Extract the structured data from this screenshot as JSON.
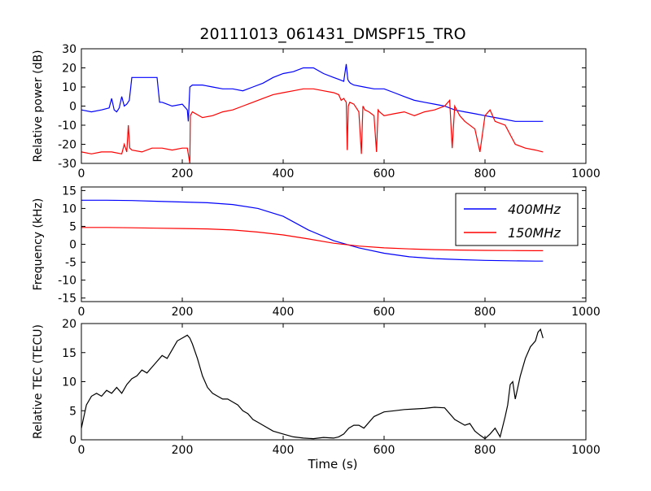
{
  "figure": {
    "title": "20111013_061431_DMSPF15_TRO",
    "xlabel": "Time (s)"
  },
  "chart_data": [
    {
      "type": "line",
      "ylabel": "Relative power (dB)",
      "xlim": [
        0,
        1000
      ],
      "ylim": [
        -30,
        30
      ],
      "xticks": [
        0,
        200,
        400,
        600,
        800,
        1000
      ],
      "yticks": [
        -30,
        -20,
        -10,
        0,
        10,
        20,
        30
      ],
      "grid": false,
      "series": [
        {
          "color": "#0000ff",
          "x": [
            0,
            20,
            40,
            55,
            60,
            65,
            70,
            75,
            80,
            85,
            90,
            95,
            100,
            150,
            155,
            160,
            180,
            200,
            210,
            212,
            215,
            220,
            240,
            260,
            280,
            300,
            320,
            340,
            360,
            380,
            400,
            420,
            440,
            460,
            480,
            500,
            510,
            520,
            525,
            528,
            530,
            533,
            540,
            560,
            580,
            600,
            620,
            640,
            660,
            680,
            700,
            720,
            740,
            760,
            780,
            800,
            820,
            840,
            860,
            880,
            900,
            915
          ],
          "y": [
            -2,
            -3,
            -2,
            -1,
            4,
            -2,
            -3,
            -1,
            5,
            0,
            1,
            3,
            15,
            15,
            2,
            2,
            0,
            1,
            -2,
            -8,
            10,
            11,
            11,
            10,
            9,
            9,
            8,
            10,
            12,
            15,
            17,
            18,
            20,
            20,
            17,
            15,
            14,
            13,
            22,
            14,
            13,
            12,
            11,
            10,
            9,
            9,
            7,
            5,
            3,
            2,
            1,
            0,
            -2,
            -3,
            -4,
            -5,
            -6,
            -7,
            -8,
            -8,
            -8,
            -8
          ]
        },
        {
          "color": "#ff0000",
          "x": [
            0,
            20,
            40,
            60,
            80,
            85,
            90,
            93,
            96,
            100,
            120,
            140,
            160,
            180,
            200,
            210,
            215,
            216,
            220,
            240,
            260,
            280,
            300,
            320,
            340,
            360,
            380,
            400,
            420,
            440,
            460,
            480,
            500,
            510,
            515,
            520,
            525,
            527,
            529,
            532,
            540,
            550,
            555,
            558,
            562,
            570,
            580,
            585,
            588,
            591,
            600,
            620,
            640,
            660,
            680,
            700,
            720,
            730,
            735,
            740,
            750,
            760,
            780,
            790,
            800,
            810,
            820,
            840,
            860,
            880,
            900,
            915
          ],
          "y": [
            -24,
            -25,
            -24,
            -24,
            -25,
            -20,
            -24,
            -10,
            -22,
            -23,
            -24,
            -22,
            -22,
            -23,
            -22,
            -22,
            -30,
            -5,
            -3,
            -6,
            -5,
            -3,
            -2,
            0,
            2,
            4,
            6,
            7,
            8,
            9,
            9,
            8,
            7,
            6,
            3,
            4,
            2,
            -23,
            0,
            2,
            1,
            -3,
            -25,
            0,
            -2,
            -3,
            -5,
            -24,
            -2,
            -3,
            -5,
            -4,
            -3,
            -5,
            -3,
            -2,
            0,
            3,
            -22,
            0,
            -5,
            -8,
            -12,
            -24,
            -5,
            -2,
            -8,
            -10,
            -20,
            -22,
            -23,
            -24
          ]
        }
      ]
    },
    {
      "type": "line",
      "ylabel": "Frequency (kHz)",
      "xlim": [
        0,
        1000
      ],
      "ylim": [
        -16,
        16
      ],
      "xticks": [
        0,
        200,
        400,
        600,
        800,
        1000
      ],
      "yticks": [
        -15,
        -10,
        -5,
        0,
        5,
        10,
        15
      ],
      "grid": false,
      "legend": "top-right",
      "series": [
        {
          "name": "400MHz",
          "color": "#0000ff",
          "x": [
            0,
            50,
            100,
            150,
            200,
            250,
            300,
            350,
            400,
            450,
            500,
            550,
            600,
            650,
            700,
            750,
            800,
            850,
            900,
            915
          ],
          "y": [
            12.3,
            12.3,
            12.2,
            12.0,
            11.8,
            11.6,
            11.1,
            10.0,
            7.8,
            4.0,
            1.0,
            -1.0,
            -2.5,
            -3.5,
            -4.0,
            -4.3,
            -4.5,
            -4.6,
            -4.7,
            -4.7
          ]
        },
        {
          "name": "150MHz",
          "color": "#ff0000",
          "x": [
            0,
            50,
            100,
            150,
            200,
            250,
            300,
            350,
            400,
            450,
            500,
            550,
            600,
            650,
            700,
            750,
            800,
            850,
            900,
            915
          ],
          "y": [
            4.7,
            4.7,
            4.6,
            4.5,
            4.4,
            4.3,
            4.0,
            3.4,
            2.6,
            1.5,
            0.3,
            -0.5,
            -1.0,
            -1.3,
            -1.5,
            -1.6,
            -1.7,
            -1.75,
            -1.8,
            -1.8
          ]
        }
      ]
    },
    {
      "type": "line",
      "ylabel": "Relative TEC (TECU)",
      "xlim": [
        0,
        1000
      ],
      "ylim": [
        0,
        20
      ],
      "xticks": [
        0,
        200,
        400,
        600,
        800,
        1000
      ],
      "yticks": [
        0,
        5,
        10,
        15,
        20
      ],
      "grid": false,
      "series": [
        {
          "color": "#000000",
          "x": [
            0,
            5,
            10,
            20,
            30,
            40,
            50,
            60,
            70,
            80,
            90,
            100,
            110,
            120,
            130,
            140,
            150,
            160,
            170,
            180,
            190,
            200,
            210,
            215,
            220,
            230,
            240,
            250,
            260,
            270,
            280,
            290,
            300,
            310,
            320,
            330,
            340,
            350,
            360,
            380,
            400,
            420,
            440,
            460,
            480,
            500,
            510,
            520,
            530,
            540,
            550,
            560,
            580,
            600,
            620,
            640,
            660,
            680,
            700,
            720,
            740,
            760,
            770,
            780,
            790,
            800,
            810,
            820,
            830,
            840,
            845,
            850,
            855,
            860,
            870,
            880,
            890,
            900,
            905,
            910,
            915
          ],
          "y": [
            2,
            4,
            6,
            7.5,
            8,
            7.5,
            8.5,
            8,
            9,
            8,
            9.5,
            10.5,
            11,
            12,
            11.5,
            12.5,
            13.5,
            14.5,
            14,
            15.5,
            17,
            17.5,
            18,
            17.5,
            16.5,
            14,
            11,
            9,
            8,
            7.5,
            7,
            7,
            6.5,
            6,
            5,
            4.5,
            3.5,
            3,
            2.5,
            1.5,
            1,
            0.5,
            0.3,
            0.2,
            0.4,
            0.3,
            0.5,
            1,
            2,
            2.5,
            2.5,
            2,
            4,
            4.8,
            5,
            5.2,
            5.3,
            5.4,
            5.6,
            5.5,
            3.5,
            2.5,
            2.8,
            1.5,
            0.8,
            0.2,
            1,
            2,
            0.5,
            4,
            6,
            9.5,
            10,
            7,
            11,
            14,
            16,
            17,
            18.5,
            19,
            17.5
          ]
        }
      ]
    }
  ]
}
